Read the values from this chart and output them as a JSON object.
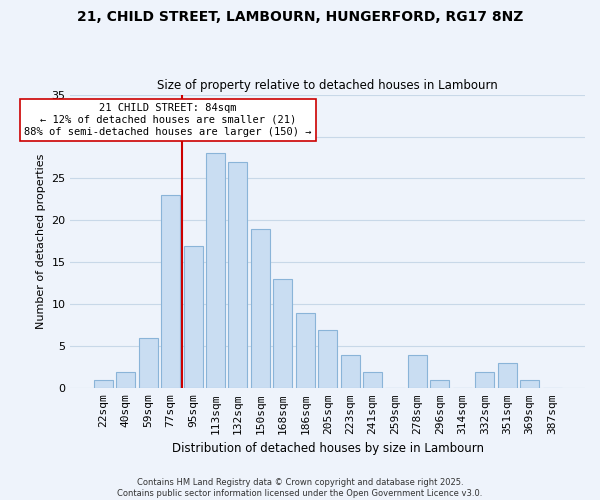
{
  "title_line1": "21, CHILD STREET, LAMBOURN, HUNGERFORD, RG17 8NZ",
  "title_line2": "Size of property relative to detached houses in Lambourn",
  "xlabel": "Distribution of detached houses by size in Lambourn",
  "ylabel": "Number of detached properties",
  "bar_labels": [
    "22sqm",
    "40sqm",
    "59sqm",
    "77sqm",
    "95sqm",
    "113sqm",
    "132sqm",
    "150sqm",
    "168sqm",
    "186sqm",
    "205sqm",
    "223sqm",
    "241sqm",
    "259sqm",
    "278sqm",
    "296sqm",
    "314sqm",
    "332sqm",
    "351sqm",
    "369sqm",
    "387sqm"
  ],
  "bar_values": [
    1,
    2,
    6,
    23,
    17,
    28,
    27,
    19,
    13,
    9,
    7,
    4,
    2,
    0,
    4,
    1,
    0,
    2,
    3,
    1,
    0
  ],
  "bar_color": "#c9ddf2",
  "bar_edge_color": "#8ab4d8",
  "grid_color": "#c8d8e8",
  "background_color": "#eef3fb",
  "vline_x": 3.5,
  "vline_color": "#cc0000",
  "annotation_title": "21 CHILD STREET: 84sqm",
  "annotation_line1": "← 12% of detached houses are smaller (21)",
  "annotation_line2": "88% of semi-detached houses are larger (150) →",
  "annotation_box_facecolor": "#ffffff",
  "annotation_box_edgecolor": "#cc0000",
  "ylim": [
    0,
    35
  ],
  "yticks": [
    0,
    5,
    10,
    15,
    20,
    25,
    30,
    35
  ],
  "footer_line1": "Contains HM Land Registry data © Crown copyright and database right 2025.",
  "footer_line2": "Contains public sector information licensed under the Open Government Licence v3.0."
}
